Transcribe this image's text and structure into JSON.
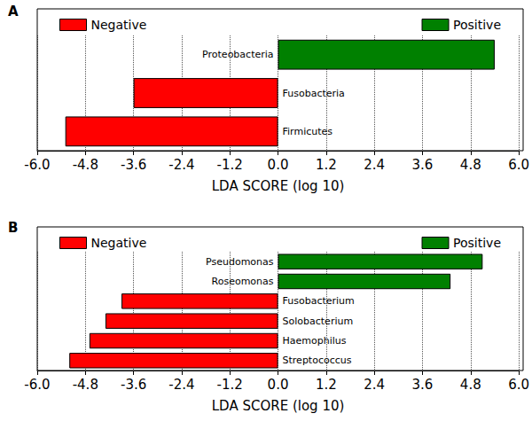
{
  "chart_data": [
    {
      "type": "bar",
      "title": "A",
      "x_label": "LDA SCORE (log 10)",
      "orientation": "horizontal",
      "grid": true,
      "legend": "top",
      "tick_labels": "x",
      "categories": [
        "Proteobacteria",
        "Fusobacteria",
        "Firmicutes"
      ],
      "series": [
        {
          "name": "Negative",
          "color": "#ff0000",
          "values": [
            null,
            -3.6,
            -5.3
          ]
        },
        {
          "name": "Positive",
          "color": "#008000",
          "values": [
            5.4,
            null,
            null
          ]
        }
      ],
      "xlim": [
        -6,
        6
      ],
      "xticks": [
        {
          "value": -6,
          "label": "-6.0"
        },
        -4.8,
        -3.6,
        -2.4,
        -1.2,
        {
          "value": 0,
          "label": "0.0"
        },
        1.2,
        2.4,
        3.6,
        4.8,
        {
          "value": 6,
          "label": "6.0"
        }
      ]
    },
    {
      "type": "bar",
      "title": "B",
      "x_label": "LDA SCORE (log 10)",
      "orientation": "horizontal",
      "grid": true,
      "legend": "top",
      "tick_labels": "x",
      "categories": [
        "Pseudomonas",
        "Roseomonas",
        "Fusobacterium",
        "Solobacterium",
        "Haemophilus",
        "Streptococcus"
      ],
      "series": [
        {
          "name": "Negative",
          "color": "#ff0000",
          "values": [
            null,
            null,
            -3.9,
            -4.3,
            -4.7,
            -5.2
          ]
        },
        {
          "name": "Positive",
          "color": "#008000",
          "values": [
            5.1,
            4.3,
            null,
            null,
            null,
            null
          ]
        }
      ],
      "xlim": [
        -6,
        6
      ],
      "xticks": [
        {
          "value": -6,
          "label": "-6.0"
        },
        -4.8,
        -3.6,
        -2.4,
        -1.2,
        {
          "value": 0,
          "label": "0.0"
        },
        1.2,
        2.4,
        3.6,
        4.8,
        {
          "value": 6,
          "label": "6.0"
        }
      ]
    }
  ]
}
